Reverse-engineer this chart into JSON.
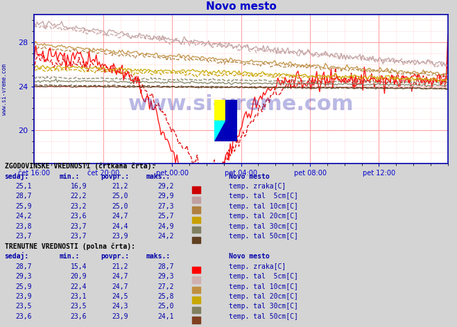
{
  "title": "Novo mesto",
  "title_color": "#0000cc",
  "bg_color": "#d4d4d4",
  "plot_bg_color": "#ffffff",
  "grid_color_major": "#ff9999",
  "grid_color_minor": "#ffdddd",
  "watermark_text": "www.si-vreme.com",
  "watermark_color": "#1a1aaa",
  "left_label": "www.si-vreme.com",
  "left_label_color": "#0000aa",
  "ylim": [
    17.0,
    30.5
  ],
  "yticks": [
    20,
    24,
    28
  ],
  "xlabel_ticks": [
    "cet 16:00",
    "cet 20:00",
    "pet 00:00",
    "pet 04:00",
    "pet 08:00",
    "pet 12:00"
  ],
  "xlabel_ticks_display": [
    "čet 16:00",
    "čet 20:00",
    "pet 00:00",
    "pet 04:00",
    "pet 08:00",
    "pet 12:00"
  ],
  "n_points": 288,
  "series_colors_dashed": [
    "#dd0000",
    "#c8a0a0",
    "#b08040",
    "#c8a000",
    "#808060",
    "#604020"
  ],
  "series_colors_solid": [
    "#ff0000",
    "#c0a0a0",
    "#c09040",
    "#c8a800",
    "#808060",
    "#604020"
  ],
  "series_names": [
    "temp. zraka[C]",
    "temp. tal  5cm[C]",
    "temp. tal 10cm[C]",
    "temp. tal 20cm[C]",
    "temp. tal 30cm[C]",
    "temp. tal 50cm[C]"
  ],
  "series_swatch_colors_hist": [
    "#cc0000",
    "#c0a0a0",
    "#b08040",
    "#c8a000",
    "#808060",
    "#604020"
  ],
  "series_swatch_colors_curr": [
    "#ff0000",
    "#d0b0b0",
    "#c09040",
    "#c8a800",
    "#808060",
    "#804020"
  ],
  "hist_label": "ZGODOVINSKE VREDNOSTI (črtkana črta):",
  "curr_label": "TRENUTNE VREDNOSTI (polna črta):",
  "table_header": [
    "sedaj:",
    "min.:",
    "povpr.:",
    "maks.:"
  ],
  "hist_data": [
    [
      25.1,
      16.9,
      21.2,
      29.2
    ],
    [
      28.7,
      22.2,
      25.0,
      29.9
    ],
    [
      25.9,
      23.2,
      25.0,
      27.3
    ],
    [
      24.2,
      23.6,
      24.7,
      25.7
    ],
    [
      23.8,
      23.7,
      24.4,
      24.9
    ],
    [
      23.7,
      23.7,
      23.9,
      24.2
    ]
  ],
  "curr_data": [
    [
      28.7,
      15.4,
      21.2,
      28.7
    ],
    [
      29.3,
      20.9,
      24.7,
      29.3
    ],
    [
      25.9,
      22.4,
      24.7,
      27.2
    ],
    [
      23.9,
      23.1,
      24.5,
      25.8
    ],
    [
      23.5,
      23.5,
      24.3,
      25.0
    ],
    [
      23.6,
      23.6,
      23.9,
      24.1
    ]
  ],
  "location_label": "Novo mesto",
  "text_color": "#0000cc",
  "table_text_color": "#0000aa"
}
